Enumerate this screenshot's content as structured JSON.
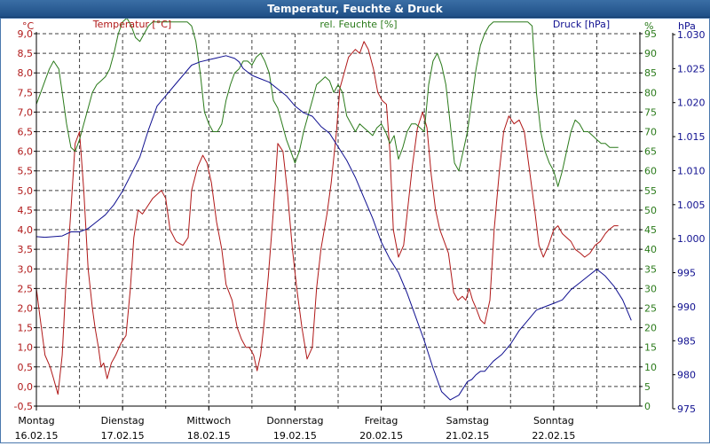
{
  "window": {
    "title": "Temperatur, Feuchte & Druck"
  },
  "colors": {
    "temperature": "#b01818",
    "humidity": "#2a7a1a",
    "pressure": "#101090",
    "grid": "#000000",
    "title_bg": "#2a5c95"
  },
  "chart_data": {
    "type": "line",
    "title": "Temperatur, Feuchte & Druck",
    "grid": true,
    "x_range": [
      0,
      7
    ],
    "days": [
      {
        "name": "Montag",
        "date": "16.02.15"
      },
      {
        "name": "Dienstag",
        "date": "17.02.15"
      },
      {
        "name": "Mittwoch",
        "date": "18.02.15"
      },
      {
        "name": "Donnerstag",
        "date": "19.02.15"
      },
      {
        "name": "Freitag",
        "date": "20.02.15"
      },
      {
        "name": "Samstag",
        "date": "21.02.15"
      },
      {
        "name": "Sonntag",
        "date": "22.02.15"
      }
    ],
    "axes": {
      "temperature": {
        "label": "Temperatur [°C]",
        "unit": "°C",
        "range": [
          -0.5,
          9.0
        ],
        "ticks": [
          "9,0",
          "8,5",
          "8,0",
          "7,5",
          "7,0",
          "6,5",
          "6,0",
          "5,5",
          "5,0",
          "4,5",
          "4,0",
          "3,5",
          "3,0",
          "2,5",
          "2,0",
          "1,5",
          "1,0",
          "0,5",
          "0,0",
          "-0,5"
        ]
      },
      "humidity": {
        "label": "rel. Feuchte [%]",
        "unit": "%",
        "range": [
          0,
          95
        ],
        "ticks": [
          "95",
          "90",
          "85",
          "80",
          "75",
          "70",
          "65",
          "60",
          "55",
          "50",
          "45",
          "40",
          "35",
          "30",
          "25",
          "20",
          "15",
          "10",
          "5",
          "0"
        ]
      },
      "pressure": {
        "label": "Druck [hPa]",
        "unit": "hPa",
        "range": [
          975,
          1030
        ],
        "ticks": [
          "1.030",
          "1.025",
          "1.020",
          "1.015",
          "1.010",
          "1.005",
          "1.000",
          "995",
          "990",
          "985",
          "980",
          "975"
        ]
      }
    },
    "series": [
      {
        "name": "Temperatur",
        "axis": "temperature",
        "x": [
          0,
          0.04,
          0.1,
          0.16,
          0.2,
          0.25,
          0.3,
          0.34,
          0.4,
          0.45,
          0.5,
          0.55,
          0.6,
          0.65,
          0.68,
          0.72,
          0.75,
          0.78,
          0.82,
          0.87,
          0.92,
          0.98,
          1.04,
          1.09,
          1.13,
          1.18,
          1.23,
          1.29,
          1.35,
          1.4,
          1.45,
          1.5,
          1.55,
          1.62,
          1.7,
          1.76,
          1.8,
          1.87,
          1.93,
          1.98,
          2.03,
          2.09,
          2.15,
          2.2,
          2.27,
          2.33,
          2.38,
          2.43,
          2.47,
          2.52,
          2.56,
          2.6,
          2.64,
          2.69,
          2.75,
          2.8,
          2.86,
          2.91,
          2.97,
          3.02,
          3.08,
          3.14,
          3.2,
          3.25,
          3.3,
          3.37,
          3.42,
          3.48,
          3.52,
          3.57,
          3.62,
          3.66,
          3.7,
          3.75,
          3.8,
          3.85,
          3.91,
          3.96,
          4.01,
          4.06,
          4.1,
          4.14,
          4.2,
          4.26,
          4.31,
          4.36,
          4.42,
          4.48,
          4.53,
          4.58,
          4.63,
          4.68,
          4.73,
          4.78,
          4.84,
          4.89,
          4.94,
          4.98,
          5.02,
          5.06,
          5.1,
          5.15,
          5.2,
          5.26,
          5.31,
          5.37,
          5.42,
          5.48,
          5.54,
          5.6,
          5.66,
          5.72,
          5.78,
          5.83,
          5.88,
          5.94,
          6.0,
          6.05,
          6.1,
          6.15,
          6.2,
          6.25,
          6.31,
          6.36,
          6.42,
          6.48,
          6.54,
          6.6,
          6.64,
          6.7,
          6.75
        ],
        "values": [
          2.5,
          1.8,
          0.8,
          0.5,
          0.2,
          -0.2,
          0.8,
          2.5,
          4.5,
          6.2,
          6.5,
          5.0,
          3.0,
          2.0,
          1.5,
          1.0,
          0.5,
          0.6,
          0.2,
          0.6,
          0.8,
          1.1,
          1.3,
          2.5,
          3.8,
          4.5,
          4.4,
          4.6,
          4.8,
          4.9,
          5.0,
          4.8,
          4.0,
          3.7,
          3.6,
          3.8,
          5.0,
          5.6,
          5.9,
          5.7,
          5.2,
          4.2,
          3.5,
          2.6,
          2.2,
          1.5,
          1.2,
          1.0,
          1.0,
          0.8,
          0.4,
          0.8,
          1.6,
          2.8,
          4.5,
          6.2,
          6.0,
          5.0,
          3.5,
          2.5,
          1.5,
          0.7,
          1.0,
          2.5,
          3.5,
          4.4,
          5.2,
          6.5,
          7.6,
          8.0,
          8.4,
          8.5,
          8.6,
          8.5,
          8.8,
          8.6,
          8.1,
          7.5,
          7.3,
          7.2,
          6.0,
          4.0,
          3.3,
          3.6,
          4.6,
          5.6,
          6.6,
          7.0,
          6.6,
          5.4,
          4.5,
          4.0,
          3.7,
          3.4,
          2.4,
          2.2,
          2.3,
          2.2,
          2.5,
          2.2,
          2.0,
          1.7,
          1.6,
          2.2,
          4.0,
          5.5,
          6.5,
          6.9,
          6.7,
          6.8,
          6.5,
          5.5,
          4.5,
          3.6,
          3.3,
          3.6,
          4.0,
          4.1,
          3.9,
          3.8,
          3.7,
          3.5,
          3.4,
          3.3,
          3.4,
          3.6,
          3.7,
          3.9,
          4.0,
          4.1,
          4.1
        ]
      },
      {
        "name": "rel. Feuchte",
        "axis": "humidity",
        "x": [
          0,
          0.05,
          0.1,
          0.15,
          0.2,
          0.26,
          0.3,
          0.35,
          0.4,
          0.45,
          0.5,
          0.55,
          0.6,
          0.65,
          0.7,
          0.75,
          0.8,
          0.85,
          0.9,
          0.95,
          1.0,
          1.05,
          1.1,
          1.15,
          1.2,
          1.25,
          1.3,
          1.35,
          1.4,
          1.45,
          1.5,
          1.55,
          1.6,
          1.65,
          1.7,
          1.75,
          1.8,
          1.85,
          1.9,
          1.95,
          2.0,
          2.05,
          2.1,
          2.15,
          2.2,
          2.25,
          2.3,
          2.35,
          2.4,
          2.45,
          2.5,
          2.55,
          2.6,
          2.65,
          2.7,
          2.75,
          2.8,
          2.85,
          2.9,
          2.95,
          3.0,
          3.05,
          3.1,
          3.15,
          3.2,
          3.25,
          3.3,
          3.35,
          3.4,
          3.45,
          3.5,
          3.55,
          3.6,
          3.65,
          3.7,
          3.75,
          3.8,
          3.85,
          3.9,
          3.95,
          4.0,
          4.05,
          4.1,
          4.15,
          4.2,
          4.25,
          4.3,
          4.35,
          4.4,
          4.45,
          4.5,
          4.55,
          4.6,
          4.65,
          4.7,
          4.75,
          4.8,
          4.85,
          4.9,
          4.95,
          5.0,
          5.05,
          5.1,
          5.15,
          5.2,
          5.25,
          5.3,
          5.35,
          5.4,
          5.45,
          5.5,
          5.55,
          5.6,
          5.65,
          5.7,
          5.75,
          5.8,
          5.85,
          5.9,
          5.95,
          6.0,
          6.05,
          6.1,
          6.15,
          6.2,
          6.25,
          6.3,
          6.35,
          6.4,
          6.45,
          6.5,
          6.55,
          6.6,
          6.65,
          6.7,
          6.75
        ],
        "values": [
          77,
          80,
          83,
          86,
          88,
          86,
          80,
          72,
          66,
          65,
          68,
          72,
          76,
          80,
          82,
          83,
          84,
          86,
          90,
          95,
          98,
          99,
          97,
          94,
          93,
          95,
          97,
          98,
          98,
          98,
          98,
          98,
          98,
          98,
          98,
          98,
          97,
          93,
          85,
          75,
          72,
          70,
          70,
          72,
          78,
          82,
          85,
          86,
          88,
          88,
          87,
          89,
          90,
          88,
          85,
          78,
          76,
          72,
          68,
          65,
          62,
          65,
          70,
          74,
          78,
          82,
          83,
          84,
          83,
          80,
          82,
          80,
          74,
          72,
          70,
          72,
          71,
          70,
          69,
          71,
          72,
          70,
          67,
          69,
          63,
          66,
          70,
          72,
          72,
          71,
          70,
          82,
          88,
          90,
          87,
          82,
          72,
          62,
          60,
          65,
          70,
          78,
          86,
          92,
          95,
          97,
          98,
          98,
          98,
          98,
          98,
          98,
          98,
          98,
          98,
          97,
          80,
          70,
          65,
          62,
          60,
          56,
          60,
          65,
          70,
          73,
          72,
          70,
          70,
          69,
          68,
          67,
          67,
          66,
          66,
          66
        ]
      },
      {
        "name": "Druck",
        "axis": "pressure",
        "x": [
          0,
          0.1,
          0.2,
          0.3,
          0.4,
          0.5,
          0.6,
          0.7,
          0.8,
          0.9,
          1.0,
          1.1,
          1.2,
          1.3,
          1.4,
          1.5,
          1.6,
          1.7,
          1.8,
          1.9,
          2.0,
          2.1,
          2.2,
          2.3,
          2.35,
          2.4,
          2.5,
          2.6,
          2.7,
          2.8,
          2.9,
          3.0,
          3.1,
          3.2,
          3.3,
          3.4,
          3.5,
          3.6,
          3.7,
          3.8,
          3.9,
          4.0,
          4.1,
          4.2,
          4.3,
          4.4,
          4.5,
          4.6,
          4.7,
          4.8,
          4.9,
          5.0,
          5.05,
          5.1,
          5.15,
          5.2,
          5.3,
          5.4,
          5.5,
          5.6,
          5.7,
          5.8,
          5.9,
          6.0,
          6.1,
          6.2,
          6.3,
          6.4,
          6.5,
          6.55,
          6.6,
          6.7,
          6.8,
          6.9
        ],
        "values": [
          1000.3,
          1000.2,
          1000.3,
          1000.4,
          1001.0,
          1001.0,
          1001.5,
          1002.5,
          1003.5,
          1005.0,
          1007.0,
          1009.5,
          1012.0,
          1016.0,
          1019.5,
          1021.0,
          1022.5,
          1024.0,
          1025.5,
          1026.0,
          1026.3,
          1026.6,
          1026.9,
          1026.5,
          1026.0,
          1025.0,
          1024.0,
          1023.5,
          1023.0,
          1022.0,
          1021.0,
          1019.5,
          1018.5,
          1018.0,
          1016.5,
          1015.5,
          1013.5,
          1011.5,
          1009.0,
          1006.0,
          1003.0,
          999.5,
          997.0,
          995.0,
          992.0,
          988.5,
          985.0,
          981.0,
          977.5,
          976.3,
          977.0,
          979.0,
          979.3,
          980.0,
          980.5,
          980.5,
          982.0,
          983.0,
          984.5,
          986.5,
          988.0,
          989.5,
          990.0,
          990.5,
          991.0,
          992.5,
          993.5,
          994.5,
          995.5,
          995.0,
          994.5,
          993.0,
          991.0,
          988.0
        ]
      }
    ]
  }
}
